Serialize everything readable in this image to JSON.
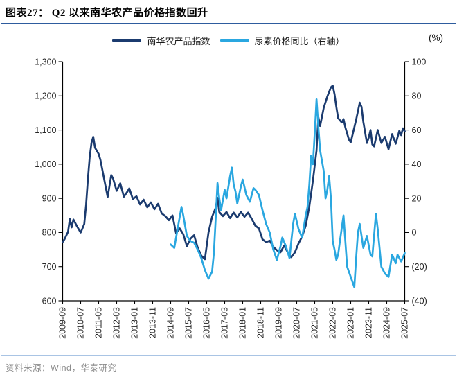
{
  "header": {
    "title": "图表27：  Q2 以来南华农产品价格指数回升"
  },
  "legend": [
    {
      "label": "南华农产品指数",
      "color": "#1b3b6f"
    },
    {
      "label": "尿素价格同比（右轴）",
      "color": "#2aa7e0"
    }
  ],
  "right_axis_unit": "(%)",
  "source": "资料来源：Wind，华泰研究",
  "colors": {
    "navy": "#1b3b6f",
    "cyan": "#2aa7e0",
    "axis": "#000000",
    "tick_text": "#262626",
    "title_rule": "#2e5c9e",
    "source_rule": "#a9c4e4"
  },
  "chart_data": {
    "type": "line",
    "title": "Q2 以来南华农产品价格指数回升",
    "grid": false,
    "legend_position": "top",
    "x_start": "2009-09",
    "x_end": "2025-07",
    "x_tick_labels": [
      "2009-09",
      "2010-07",
      "2011-05",
      "2012-03",
      "2013-01",
      "2013-11",
      "2014-09",
      "2015-07",
      "2016-05",
      "2017-03",
      "2018-01",
      "2018-11",
      "2019-09",
      "2020-07",
      "2021-05",
      "2022-03",
      "2023-01",
      "2023-11",
      "2024-09",
      "2025-07"
    ],
    "left_axis": {
      "min": 600,
      "max": 1300,
      "step": 100,
      "tick_labels": [
        "600",
        "700",
        "800",
        "900",
        "1,000",
        "1,100",
        "1,200",
        "1,300"
      ]
    },
    "right_axis": {
      "min": -40,
      "max": 100,
      "step": 20,
      "tick_labels": [
        "(40)",
        "(20)",
        "0",
        "20",
        "40",
        "60",
        "80",
        "100"
      ],
      "unit": "(%)"
    },
    "series": [
      {
        "name": "南华农产品指数",
        "axis": "left",
        "color": "#1b3b6f",
        "points": [
          [
            "2009-09",
            772
          ],
          [
            "2009-10",
            780
          ],
          [
            "2009-12",
            802
          ],
          [
            "2010-01",
            840
          ],
          [
            "2010-02",
            815
          ],
          [
            "2010-03",
            838
          ],
          [
            "2010-05",
            818
          ],
          [
            "2010-07",
            800
          ],
          [
            "2010-08",
            812
          ],
          [
            "2010-09",
            825
          ],
          [
            "2010-10",
            880
          ],
          [
            "2010-11",
            955
          ],
          [
            "2010-12",
            1020
          ],
          [
            "2011-01",
            1062
          ],
          [
            "2011-02",
            1080
          ],
          [
            "2011-03",
            1048
          ],
          [
            "2011-05",
            1030
          ],
          [
            "2011-06",
            1012
          ],
          [
            "2011-08",
            958
          ],
          [
            "2011-10",
            904
          ],
          [
            "2011-12",
            968
          ],
          [
            "2012-01",
            958
          ],
          [
            "2012-03",
            922
          ],
          [
            "2012-05",
            944
          ],
          [
            "2012-07",
            905
          ],
          [
            "2012-09",
            920
          ],
          [
            "2012-10",
            929
          ],
          [
            "2012-12",
            898
          ],
          [
            "2013-02",
            906
          ],
          [
            "2013-04",
            882
          ],
          [
            "2013-06",
            896
          ],
          [
            "2013-08",
            874
          ],
          [
            "2013-10",
            888
          ],
          [
            "2013-12",
            868
          ],
          [
            "2014-02",
            884
          ],
          [
            "2014-04",
            856
          ],
          [
            "2014-06",
            848
          ],
          [
            "2014-08",
            836
          ],
          [
            "2014-10",
            850
          ],
          [
            "2014-12",
            798
          ],
          [
            "2015-02",
            812
          ],
          [
            "2015-04",
            795
          ],
          [
            "2015-06",
            760
          ],
          [
            "2015-08",
            782
          ],
          [
            "2015-10",
            792
          ],
          [
            "2015-12",
            756
          ],
          [
            "2016-02",
            732
          ],
          [
            "2016-04",
            722
          ],
          [
            "2016-06",
            800
          ],
          [
            "2016-08",
            846
          ],
          [
            "2016-10",
            872
          ],
          [
            "2016-11",
            902
          ],
          [
            "2016-12",
            860
          ],
          [
            "2017-02",
            848
          ],
          [
            "2017-04",
            860
          ],
          [
            "2017-06",
            842
          ],
          [
            "2017-08",
            858
          ],
          [
            "2017-10",
            844
          ],
          [
            "2017-12",
            860
          ],
          [
            "2018-02",
            846
          ],
          [
            "2018-04",
            858
          ],
          [
            "2018-06",
            840
          ],
          [
            "2018-08",
            820
          ],
          [
            "2018-10",
            812
          ],
          [
            "2018-12",
            780
          ],
          [
            "2019-02",
            772
          ],
          [
            "2019-04",
            776
          ],
          [
            "2019-06",
            758
          ],
          [
            "2019-08",
            748
          ],
          [
            "2019-10",
            742
          ],
          [
            "2019-12",
            762
          ],
          [
            "2020-02",
            742
          ],
          [
            "2020-04",
            728
          ],
          [
            "2020-06",
            742
          ],
          [
            "2020-08",
            768
          ],
          [
            "2020-10",
            788
          ],
          [
            "2020-12",
            820
          ],
          [
            "2021-02",
            876
          ],
          [
            "2021-04",
            952
          ],
          [
            "2021-06",
            1040
          ],
          [
            "2021-07",
            1138
          ],
          [
            "2021-08",
            1112
          ],
          [
            "2021-10",
            1165
          ],
          [
            "2021-12",
            1198
          ],
          [
            "2022-02",
            1225
          ],
          [
            "2022-03",
            1230
          ],
          [
            "2022-04",
            1205
          ],
          [
            "2022-05",
            1168
          ],
          [
            "2022-06",
            1135
          ],
          [
            "2022-08",
            1122
          ],
          [
            "2022-09",
            1132
          ],
          [
            "2022-10",
            1108
          ],
          [
            "2022-12",
            1072
          ],
          [
            "2023-01",
            1064
          ],
          [
            "2023-02",
            1086
          ],
          [
            "2023-04",
            1130
          ],
          [
            "2023-06",
            1180
          ],
          [
            "2023-07",
            1168
          ],
          [
            "2023-08",
            1124
          ],
          [
            "2023-10",
            1062
          ],
          [
            "2023-11",
            1078
          ],
          [
            "2023-12",
            1100
          ],
          [
            "2024-01",
            1058
          ],
          [
            "2024-02",
            1052
          ],
          [
            "2024-04",
            1100
          ],
          [
            "2024-06",
            1062
          ],
          [
            "2024-08",
            1080
          ],
          [
            "2024-10",
            1044
          ],
          [
            "2024-12",
            1088
          ],
          [
            "2025-02",
            1060
          ],
          [
            "2025-04",
            1098
          ],
          [
            "2025-05",
            1085
          ],
          [
            "2025-06",
            1105
          ],
          [
            "2025-07",
            1096
          ]
        ]
      },
      {
        "name": "尿素价格同比（右轴）",
        "axis": "right",
        "color": "#2aa7e0",
        "points": [
          [
            "2014-09",
            -7
          ],
          [
            "2014-11",
            -9
          ],
          [
            "2015-01",
            3
          ],
          [
            "2015-03",
            15
          ],
          [
            "2015-04",
            10
          ],
          [
            "2015-06",
            -2
          ],
          [
            "2015-08",
            -5
          ],
          [
            "2015-10",
            -6
          ],
          [
            "2015-12",
            -10
          ],
          [
            "2016-02",
            -15
          ],
          [
            "2016-04",
            -22
          ],
          [
            "2016-06",
            -27
          ],
          [
            "2016-08",
            -23
          ],
          [
            "2016-09",
            -12
          ],
          [
            "2016-10",
            8
          ],
          [
            "2016-11",
            29
          ],
          [
            "2016-12",
            20
          ],
          [
            "2017-01",
            13
          ],
          [
            "2017-03",
            25
          ],
          [
            "2017-04",
            20
          ],
          [
            "2017-06",
            33
          ],
          [
            "2017-07",
            38
          ],
          [
            "2017-08",
            28
          ],
          [
            "2017-09",
            24
          ],
          [
            "2017-10",
            17
          ],
          [
            "2017-12",
            27
          ],
          [
            "2018-01",
            31
          ],
          [
            "2018-03",
            22
          ],
          [
            "2018-05",
            18
          ],
          [
            "2018-07",
            26
          ],
          [
            "2018-08",
            25
          ],
          [
            "2018-10",
            22
          ],
          [
            "2018-12",
            13
          ],
          [
            "2019-02",
            5
          ],
          [
            "2019-04",
            0
          ],
          [
            "2019-06",
            -10
          ],
          [
            "2019-08",
            -16
          ],
          [
            "2019-10",
            -8
          ],
          [
            "2019-11",
            -3
          ],
          [
            "2020-01",
            -8
          ],
          [
            "2020-03",
            -15
          ],
          [
            "2020-05",
            5
          ],
          [
            "2020-06",
            11
          ],
          [
            "2020-08",
            2
          ],
          [
            "2020-10",
            -3
          ],
          [
            "2020-12",
            10
          ],
          [
            "2021-01",
            15
          ],
          [
            "2021-02",
            28
          ],
          [
            "2021-03",
            45
          ],
          [
            "2021-04",
            40
          ],
          [
            "2021-05",
            58
          ],
          [
            "2021-06",
            78
          ],
          [
            "2021-07",
            62
          ],
          [
            "2021-08",
            48
          ],
          [
            "2021-09",
            42
          ],
          [
            "2021-10",
            36
          ],
          [
            "2021-11",
            20
          ],
          [
            "2021-12",
            25
          ],
          [
            "2022-01",
            33
          ],
          [
            "2022-02",
            20
          ],
          [
            "2022-03",
            -5
          ],
          [
            "2022-04",
            -10
          ],
          [
            "2022-05",
            -16
          ],
          [
            "2022-06",
            -13
          ],
          [
            "2022-07",
            -5
          ],
          [
            "2022-09",
            10
          ],
          [
            "2022-10",
            -5
          ],
          [
            "2022-11",
            -20
          ],
          [
            "2023-01",
            -26
          ],
          [
            "2023-03",
            -32
          ],
          [
            "2023-04",
            -15
          ],
          [
            "2023-05",
            0
          ],
          [
            "2023-06",
            5
          ],
          [
            "2023-08",
            -9
          ],
          [
            "2023-10",
            -2
          ],
          [
            "2023-12",
            -13
          ],
          [
            "2024-01",
            -14
          ],
          [
            "2024-03",
            11
          ],
          [
            "2024-04",
            2
          ],
          [
            "2024-06",
            -20
          ],
          [
            "2024-08",
            -24
          ],
          [
            "2024-10",
            -26
          ],
          [
            "2024-12",
            -13
          ],
          [
            "2025-02",
            -18
          ],
          [
            "2025-03",
            -13
          ],
          [
            "2025-05",
            -17
          ],
          [
            "2025-07",
            -12
          ]
        ]
      }
    ]
  }
}
